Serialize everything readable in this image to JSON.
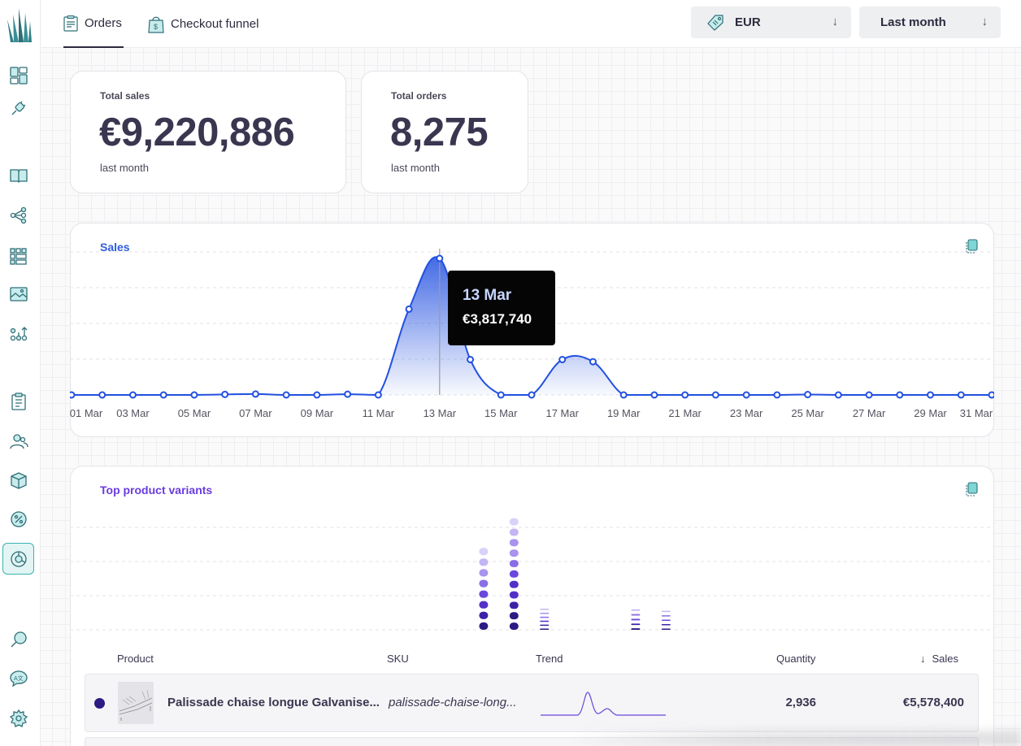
{
  "tabs": [
    {
      "label": "Orders",
      "icon": "clipboard-icon",
      "active": true
    },
    {
      "label": "Checkout funnel",
      "icon": "shopping-bag-icon",
      "active": false
    }
  ],
  "filters": {
    "currency": {
      "value": "EUR",
      "icon": "price-tag-icon"
    },
    "period": {
      "value": "Last month"
    }
  },
  "kpis": [
    {
      "label": "Total sales",
      "value": "€9,220,886",
      "sub": "last month"
    },
    {
      "label": "Total orders",
      "value": "8,275",
      "sub": "last month"
    }
  ],
  "sales_chart": {
    "title": "Sales",
    "title_color": "#2f5ce0",
    "line_color": "#2250e0",
    "tooltip": {
      "date": "13 Mar",
      "value": "€3,817,740"
    }
  },
  "chart_data": [
    {
      "type": "area",
      "title": "Sales",
      "x": [
        "01 Mar",
        "02 Mar",
        "03 Mar",
        "04 Mar",
        "05 Mar",
        "06 Mar",
        "07 Mar",
        "08 Mar",
        "09 Mar",
        "10 Mar",
        "11 Mar",
        "12 Mar",
        "13 Mar",
        "14 Mar",
        "15 Mar",
        "16 Mar",
        "17 Mar",
        "18 Mar",
        "19 Mar",
        "20 Mar",
        "21 Mar",
        "22 Mar",
        "23 Mar",
        "24 Mar",
        "25 Mar",
        "26 Mar",
        "27 Mar",
        "28 Mar",
        "29 Mar",
        "30 Mar",
        "31 Mar"
      ],
      "xticks": [
        "01 Mar",
        "03 Mar",
        "05 Mar",
        "07 Mar",
        "09 Mar",
        "11 Mar",
        "13 Mar",
        "15 Mar",
        "17 Mar",
        "19 Mar",
        "21 Mar",
        "23 Mar",
        "25 Mar",
        "27 Mar",
        "29 Mar",
        "31 Mar"
      ],
      "values": [
        0,
        0,
        0,
        0,
        0,
        15000,
        25000,
        0,
        0,
        20000,
        0,
        2400000,
        3817740,
        990000,
        0,
        0,
        990000,
        930000,
        0,
        0,
        0,
        0,
        0,
        0,
        10000,
        0,
        0,
        0,
        0,
        0,
        0
      ],
      "ylim": [
        0,
        4000000
      ],
      "grid": true,
      "legend": "none"
    },
    {
      "type": "bar",
      "title": "Top product variants",
      "stacked": true,
      "style": "dotted-segments",
      "columns": [
        {
          "segments": 8,
          "value": 115
        },
        {
          "segments": 11,
          "value": 155
        },
        {
          "segments": 6,
          "value": 32
        },
        {
          "segments": 5,
          "value": 32
        },
        {
          "segments": 5,
          "value": 30
        }
      ],
      "column_slots": [
        13,
        14,
        15,
        18,
        19
      ],
      "ylim": [
        0,
        170
      ],
      "grid": true
    }
  ],
  "variants_chart": {
    "title": "Top product variants",
    "title_color": "#6a3ce0",
    "palette": [
      "#2d1a82",
      "#3d22a8",
      "#5230c8",
      "#6a48dc",
      "#8a6ee6",
      "#a893ee",
      "#c3b6f4",
      "#d9d1f8"
    ]
  },
  "table": {
    "headers": {
      "product": "Product",
      "sku": "SKU",
      "trend": "Trend",
      "quantity": "Quantity",
      "sales": "Sales"
    },
    "sort_icon": "arrow-down-icon",
    "rows": [
      {
        "product": "Palissade chaise longue Galvanise...",
        "sku": "palissade-chaise-long...",
        "quantity": "2,936",
        "sales": "€5,578,400",
        "color": "#2d1a82"
      }
    ]
  }
}
